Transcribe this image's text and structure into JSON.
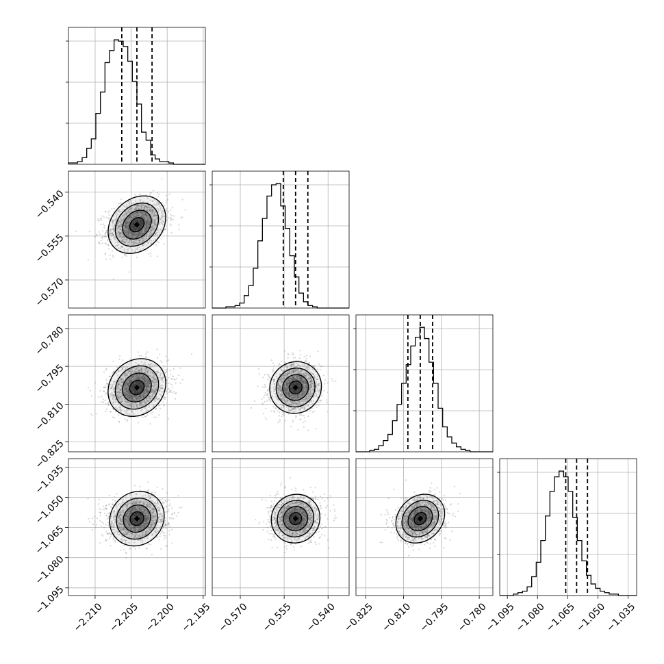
{
  "chart_data": {
    "type": "corner",
    "title": "",
    "grid": true,
    "parameters": [
      {
        "label": "",
        "mean": -2.2042,
        "sigma": 0.0021,
        "range": [
          -2.2137,
          -2.1947
        ],
        "quantiles": [
          -2.2063,
          -2.2042,
          -2.2021
        ],
        "ticks": [
          -2.21,
          -2.205,
          -2.2,
          -2.195
        ],
        "tick_labels": [
          "−2.210",
          "−2.205",
          "−2.200",
          "−2.195"
        ]
      },
      {
        "label": "",
        "mean": -0.5511,
        "sigma": 0.0042,
        "range": [
          -0.5796,
          -0.5328
        ],
        "quantiles": [
          -0.5553,
          -0.5511,
          -0.5469
        ],
        "ticks": [
          -0.57,
          -0.555,
          -0.54
        ],
        "tick_labels": [
          "−0.570",
          "−0.555",
          "−0.540"
        ]
      },
      {
        "label": "",
        "mean": -0.8034,
        "sigma": 0.0049,
        "range": [
          -0.8289,
          -0.7746
        ],
        "quantiles": [
          -0.8083,
          -0.8034,
          -0.7985
        ],
        "ticks": [
          -0.825,
          -0.81,
          -0.795,
          -0.78
        ],
        "tick_labels": [
          "−0.825",
          "−0.810",
          "−0.795",
          "−0.780"
        ]
      },
      {
        "label": "",
        "mean": -1.0606,
        "sigma": 0.0054,
        "range": [
          -1.0988,
          -1.0308
        ],
        "quantiles": [
          -1.066,
          -1.0606,
          -1.0552
        ],
        "ticks": [
          -1.095,
          -1.08,
          -1.065,
          -1.05,
          -1.035
        ],
        "tick_labels": [
          "−1.095",
          "−1.080",
          "−1.065",
          "−1.050",
          "−1.035"
        ]
      }
    ],
    "histograms": [
      {
        "parameter": 0,
        "counts": [
          1,
          1,
          2,
          5,
          12,
          19,
          38,
          54,
          76,
          85,
          93,
          92,
          88,
          77,
          62,
          45,
          24,
          18,
          7,
          4,
          2,
          2,
          1,
          0,
          0,
          0,
          0,
          0,
          0,
          0
        ]
      },
      {
        "parameter": 1,
        "counts": [
          0,
          0,
          0,
          1,
          1,
          2,
          4,
          10,
          18,
          32,
          54,
          72,
          90,
          99,
          100,
          82,
          64,
          42,
          25,
          12,
          5,
          2,
          1,
          0,
          0,
          0,
          0,
          0,
          0,
          0
        ]
      },
      {
        "parameter": 2,
        "counts": [
          0,
          0,
          0,
          1,
          2,
          5,
          9,
          14,
          25,
          38,
          55,
          70,
          85,
          92,
          100,
          91,
          72,
          55,
          35,
          20,
          12,
          7,
          4,
          2,
          1,
          0,
          0,
          0,
          0,
          0
        ]
      },
      {
        "parameter": 3,
        "counts": [
          0,
          0,
          0,
          1,
          2,
          3,
          6,
          13,
          23,
          38,
          55,
          72,
          82,
          86,
          82,
          72,
          54,
          38,
          24,
          14,
          8,
          5,
          3,
          2,
          1,
          1,
          0,
          0,
          0,
          0
        ]
      }
    ],
    "pairs": [
      {
        "x": 0,
        "y": 1,
        "correlation": 0.25
      },
      {
        "x": 0,
        "y": 2,
        "correlation": 0.15
      },
      {
        "x": 1,
        "y": 2,
        "correlation": 0.05
      },
      {
        "x": 0,
        "y": 3,
        "correlation": 0.1
      },
      {
        "x": 1,
        "y": 3,
        "correlation": 0.05
      },
      {
        "x": 2,
        "y": 3,
        "correlation": 0.2
      }
    ],
    "contour_levels_sigma": [
      0.5,
      1.0,
      1.5,
      2.0
    ],
    "colors": {
      "line": "#000000",
      "points": "#8a8a8a",
      "density": "#000000",
      "grid": "#b0b0b0"
    }
  }
}
